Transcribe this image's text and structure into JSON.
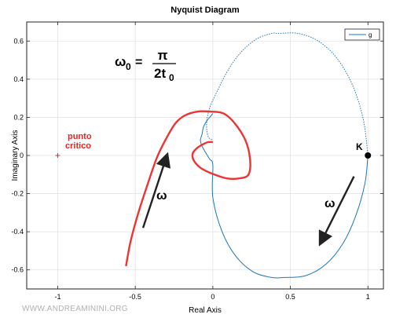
{
  "chart_data": {
    "type": "line",
    "title": "Nyquist Diagram",
    "xlabel": "Real Axis",
    "ylabel": "Imaginary Axis",
    "xlim": [
      -1.2,
      1.1
    ],
    "ylim": [
      -0.7,
      0.7
    ],
    "x_ticks": [
      -1,
      -0.5,
      0,
      0.5,
      1
    ],
    "x_tick_labels": [
      "-1",
      "-0.5",
      "0",
      "0.5",
      "1"
    ],
    "y_ticks": [
      -0.6,
      -0.4,
      -0.2,
      0,
      0.2,
      0.4,
      0.6
    ],
    "y_tick_labels": [
      "-0.6",
      "-0.4",
      "-0.2",
      "0",
      "0.2",
      "0.4",
      "0.6"
    ],
    "grid": true,
    "legend_position": "top-right",
    "series": [
      {
        "name": "g",
        "color": "#1f77b4",
        "x": [
          1.0,
          0.98,
          0.92,
          0.84,
          0.73,
          0.6,
          0.46,
          0.38,
          0.26,
          0.15,
          0.06,
          0.0,
          0.0,
          -0.02,
          -0.05,
          -0.07,
          -0.08,
          -0.07,
          -0.06,
          -0.04,
          -0.02,
          0.0
        ],
        "y": [
          0.0,
          -0.15,
          -0.32,
          -0.46,
          -0.57,
          -0.63,
          -0.64,
          -0.64,
          -0.61,
          -0.53,
          -0.4,
          -0.22,
          -0.05,
          -0.02,
          0.02,
          0.05,
          0.08,
          0.11,
          0.15,
          0.18,
          0.2,
          0.22
        ]
      },
      {
        "name": "",
        "color": "#1f77b4",
        "dashed": true,
        "x": [
          1.0,
          0.97,
          0.9,
          0.8,
          0.68,
          0.55,
          0.42,
          0.38,
          0.28,
          0.18,
          0.1,
          0.03,
          -0.02,
          -0.04,
          -0.03,
          0.0
        ],
        "y": [
          0.0,
          0.19,
          0.37,
          0.51,
          0.6,
          0.64,
          0.64,
          0.64,
          0.61,
          0.54,
          0.45,
          0.34,
          0.25,
          0.17,
          0.1,
          0.08
        ]
      },
      {
        "name": "",
        "color": "#ee3333",
        "x": [
          -0.56,
          -0.53,
          -0.48,
          -0.42,
          -0.36,
          -0.3,
          -0.24,
          -0.18,
          -0.1,
          -0.01,
          0.07,
          0.14,
          0.21,
          0.24,
          0.23,
          0.17,
          0.09,
          0.01,
          -0.07,
          -0.12,
          -0.13,
          -0.1,
          -0.06,
          -0.03,
          0.0
        ],
        "y": [
          -0.58,
          -0.45,
          -0.3,
          -0.15,
          -0.01,
          0.09,
          0.17,
          0.21,
          0.23,
          0.23,
          0.22,
          0.17,
          0.08,
          -0.02,
          -0.1,
          -0.12,
          -0.12,
          -0.1,
          -0.07,
          -0.03,
          0.01,
          0.04,
          0.06,
          0.07,
          0.07
        ]
      }
    ],
    "annotations": {
      "critical_point": {
        "x": -1,
        "y": 0,
        "label_line1": "punto",
        "label_line2": "critico"
      },
      "k_point": {
        "x": 1,
        "y": 0,
        "label": "K"
      },
      "omega_label_1": "ω",
      "omega_label_2": "ω",
      "formula_lhs": "ω",
      "formula_sub": "0",
      "formula_eq": "=",
      "formula_num": "π",
      "formula_den": "2t",
      "formula_den_sub": "0"
    },
    "arrows": [
      {
        "from": [
          -0.45,
          -0.38
        ],
        "to": [
          -0.3,
          -0.01
        ]
      },
      {
        "from": [
          0.91,
          -0.11
        ],
        "to": [
          0.7,
          -0.45
        ]
      }
    ]
  },
  "watermark": "WWW.ANDREAMININI.ORG"
}
